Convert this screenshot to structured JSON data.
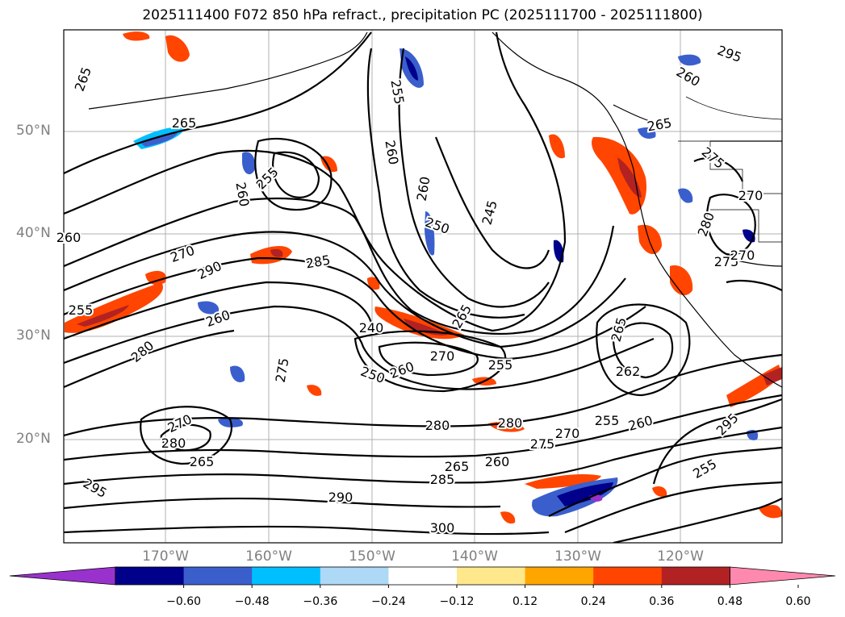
{
  "title": "2025111400 F072 850 hPa refract., precipitation PC (2025111700 - 2025111800)",
  "map": {
    "lat_labels": [
      "50°N",
      "40°N",
      "30°N",
      "20°N"
    ],
    "lon_labels": [
      "170°W",
      "160°W",
      "150°W",
      "140°W",
      "130°W",
      "120°W"
    ],
    "contour_labels": [
      "265",
      "265",
      "255",
      "260",
      "270",
      "290",
      "285",
      "260",
      "255",
      "260",
      "250",
      "245",
      "265",
      "240",
      "270",
      "260",
      "250",
      "255",
      "265",
      "262",
      "260",
      "275",
      "280",
      "270",
      "265",
      "280",
      "280",
      "275",
      "270",
      "255",
      "260",
      "265",
      "260",
      "255",
      "290",
      "285",
      "300",
      "295",
      "295",
      "295",
      "260",
      "265",
      "275",
      "270",
      "280",
      "275",
      "270",
      "280",
      "260",
      "255"
    ]
  },
  "colorbar": {
    "ticks": [
      "−0.60",
      "−0.48",
      "−0.36",
      "−0.24",
      "−0.12",
      "0.12",
      "0.24",
      "0.36",
      "0.48",
      "0.60"
    ],
    "colors": [
      "#9932cc",
      "#00008b",
      "#3a5fcd",
      "#00bfff",
      "#add8f6",
      "#ffffff",
      "#ffe78c",
      "#ffa500",
      "#ff4500",
      "#b22222",
      "#ff89ae"
    ]
  }
}
